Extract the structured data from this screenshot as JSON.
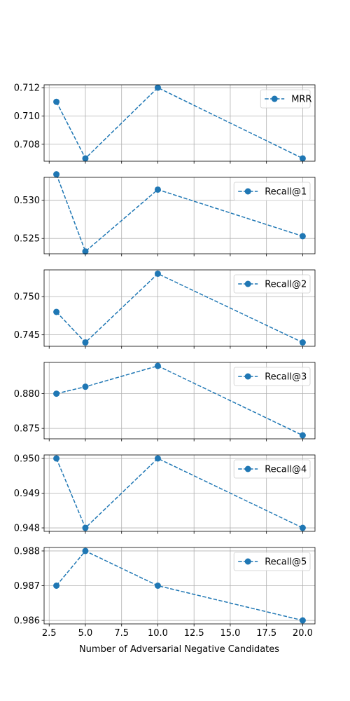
{
  "chart_data": {
    "type": "line",
    "layout": "6 stacked subplots sharing x axis",
    "xlabel": "Number of Adversarial Negative Candidates",
    "x": [
      3,
      5,
      10,
      20
    ],
    "xlim": [
      2.15,
      20.85
    ],
    "xticks": [
      2.5,
      5.0,
      7.5,
      10.0,
      12.5,
      15.0,
      17.5,
      20.0
    ],
    "xtick_labels": [
      "2.5",
      "5.0",
      "7.5",
      "10.0",
      "12.5",
      "15.0",
      "17.5",
      "20.0"
    ],
    "grid": true,
    "legend_placement": "upper right",
    "line_style": "dashed",
    "marker": "circle",
    "color": "#1f77b4",
    "panels": [
      {
        "name": "MRR",
        "values": [
          0.711,
          0.707,
          0.712,
          0.707
        ],
        "ylim": [
          0.7068,
          0.7122
        ],
        "yticks": [
          0.708,
          0.71,
          0.712
        ],
        "ytick_labels": [
          "0.708",
          "0.710",
          "0.712"
        ]
      },
      {
        "name": "Recall@1",
        "values": [
          0.5334,
          0.5233,
          0.5314,
          0.5253
        ],
        "ylim": [
          0.523,
          0.533
        ],
        "yticks": [
          0.525,
          0.53
        ],
        "ytick_labels": [
          "0.525",
          "0.530"
        ]
      },
      {
        "name": "Recall@2",
        "values": [
          0.748,
          0.744,
          0.753,
          0.744
        ],
        "ylim": [
          0.7435,
          0.7535
        ],
        "yticks": [
          0.745,
          0.75
        ],
        "ytick_labels": [
          "0.745",
          "0.750"
        ]
      },
      {
        "name": "Recall@3",
        "values": [
          0.88,
          0.881,
          0.884,
          0.874
        ],
        "ylim": [
          0.8735,
          0.8845
        ],
        "yticks": [
          0.875,
          0.88
        ],
        "ytick_labels": [
          "0.875",
          "0.880"
        ]
      },
      {
        "name": "Recall@4",
        "values": [
          0.95,
          0.948,
          0.95,
          0.948
        ],
        "ylim": [
          0.9479,
          0.9501
        ],
        "yticks": [
          0.948,
          0.949,
          0.95
        ],
        "ytick_labels": [
          "0.948",
          "0.949",
          "0.950"
        ]
      },
      {
        "name": "Recall@5",
        "values": [
          0.987,
          0.988,
          0.987,
          0.986
        ],
        "ylim": [
          0.9859,
          0.9881
        ],
        "yticks": [
          0.986,
          0.987,
          0.988
        ],
        "ytick_labels": [
          "0.986",
          "0.987",
          "0.988"
        ]
      }
    ]
  }
}
